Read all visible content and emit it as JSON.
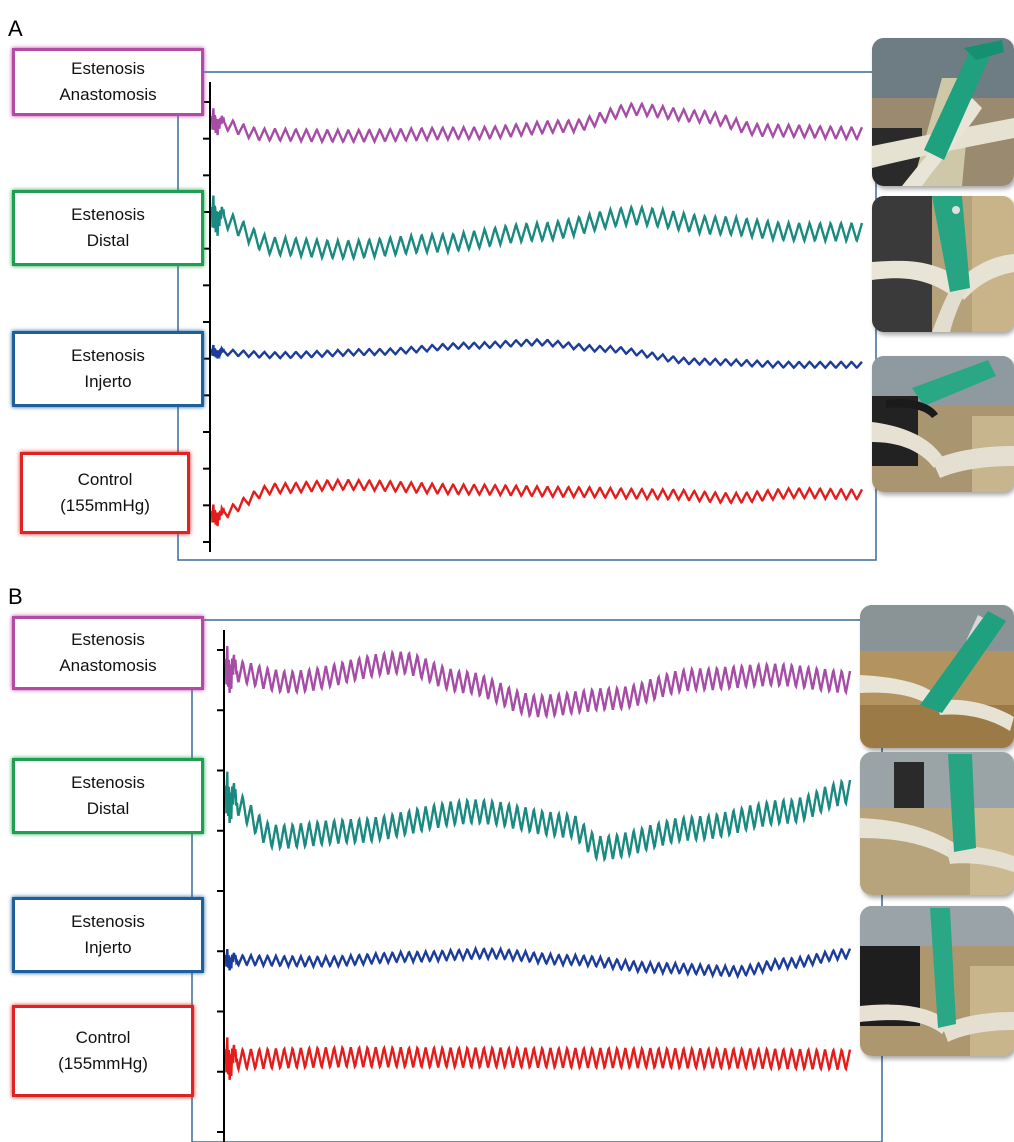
{
  "panels": [
    {
      "letter": "A",
      "labels": [
        {
          "text": "Estenosis\nAnastomosis",
          "color": "#b24aa6"
        },
        {
          "text": "Estenosis\nDistal",
          "color": "#1f9e52"
        },
        {
          "text": "Estenosis\nInjerto",
          "color": "#1f5f9a"
        },
        {
          "text": "Control\n(155mmHg)",
          "color": "#e12222"
        }
      ]
    },
    {
      "letter": "B",
      "labels": [
        {
          "text": "Estenosis\nAnastomosis",
          "color": "#b24aa6"
        },
        {
          "text": "Estenosis\nDistal",
          "color": "#1f9e52"
        },
        {
          "text": "Estenosis\nInjerto",
          "color": "#1f5f9a"
        },
        {
          "text": "Control\n(155mmHg)",
          "color": "#e12222"
        }
      ]
    }
  ],
  "chart_data": [
    {
      "type": "line",
      "panel": "A",
      "y_ticks": 13,
      "series": [
        {
          "name": "Estenosis Anastomosis",
          "color": "#a64ca6",
          "oscillation_cycles": 62,
          "baseline": [
            [
              0,
              0.0
            ],
            [
              0.08,
              0.9
            ],
            [
              0.2,
              1.0
            ],
            [
              0.4,
              0.8
            ],
            [
              0.55,
              0.3
            ],
            [
              0.65,
              -0.9
            ],
            [
              0.75,
              -0.4
            ],
            [
              0.85,
              0.6
            ],
            [
              1.0,
              0.8
            ]
          ]
        },
        {
          "name": "Estenosis Distal",
          "color": "#1a8a80",
          "oscillation_cycles": 62,
          "baseline": [
            [
              0,
              -1.0
            ],
            [
              0.1,
              0.9
            ],
            [
              0.2,
              1.1
            ],
            [
              0.35,
              0.7
            ],
            [
              0.5,
              0.0
            ],
            [
              0.65,
              -1.0
            ],
            [
              0.78,
              -0.4
            ],
            [
              0.9,
              0.0
            ],
            [
              1.0,
              0.0
            ]
          ]
        },
        {
          "name": "Estenosis Injerto",
          "color": "#1c3c9c",
          "oscillation_cycles": 62,
          "baseline": [
            [
              0,
              0.0
            ],
            [
              0.1,
              0.2
            ],
            [
              0.25,
              0.0
            ],
            [
              0.4,
              -0.4
            ],
            [
              0.5,
              -0.6
            ],
            [
              0.6,
              -0.2
            ],
            [
              0.75,
              0.6
            ],
            [
              0.9,
              0.8
            ],
            [
              1.0,
              0.8
            ]
          ]
        },
        {
          "name": "Control (155mmHg)",
          "color": "#e51c1c",
          "oscillation_cycles": 62,
          "baseline": [
            [
              0,
              2.0
            ],
            [
              0.1,
              -0.3
            ],
            [
              0.2,
              -0.6
            ],
            [
              0.4,
              -0.2
            ],
            [
              0.55,
              0.0
            ],
            [
              0.7,
              0.2
            ],
            [
              0.8,
              0.5
            ],
            [
              0.9,
              0.1
            ],
            [
              1.0,
              0.2
            ]
          ]
        }
      ]
    },
    {
      "type": "line",
      "panel": "B",
      "y_ticks": 9,
      "series": [
        {
          "name": "Estenosis Anastomosis",
          "color": "#a64ca6",
          "oscillation_cycles": 75,
          "baseline": [
            [
              0,
              -0.5
            ],
            [
              0.1,
              0.0
            ],
            [
              0.28,
              -0.8
            ],
            [
              0.38,
              0.0
            ],
            [
              0.5,
              1.0
            ],
            [
              0.62,
              0.7
            ],
            [
              0.75,
              -0.1
            ],
            [
              0.88,
              -0.3
            ],
            [
              1.0,
              0.0
            ]
          ]
        },
        {
          "name": "Estenosis Distal",
          "color": "#1a8a80",
          "oscillation_cycles": 75,
          "baseline": [
            [
              0,
              -0.8
            ],
            [
              0.08,
              0.6
            ],
            [
              0.2,
              0.4
            ],
            [
              0.4,
              -0.3
            ],
            [
              0.55,
              0.2
            ],
            [
              0.6,
              1.0
            ],
            [
              0.75,
              0.3
            ],
            [
              0.9,
              -0.3
            ],
            [
              1.0,
              -1.0
            ]
          ]
        },
        {
          "name": "Estenosis Injerto",
          "color": "#1c3c9c",
          "oscillation_cycles": 75,
          "baseline": [
            [
              0,
              0.0
            ],
            [
              0.15,
              0.1
            ],
            [
              0.3,
              -0.2
            ],
            [
              0.42,
              -0.4
            ],
            [
              0.55,
              0.0
            ],
            [
              0.7,
              0.5
            ],
            [
              0.82,
              0.7
            ],
            [
              0.9,
              0.2
            ],
            [
              1.0,
              -0.4
            ]
          ]
        },
        {
          "name": "Control (155mmHg)",
          "color": "#e51c1c",
          "oscillation_cycles": 75,
          "baseline": [
            [
              0,
              0.3
            ],
            [
              0.2,
              -0.2
            ],
            [
              0.4,
              -0.1
            ],
            [
              0.6,
              0.0
            ],
            [
              0.8,
              0.1
            ],
            [
              1.0,
              0.4
            ]
          ]
        }
      ]
    }
  ]
}
